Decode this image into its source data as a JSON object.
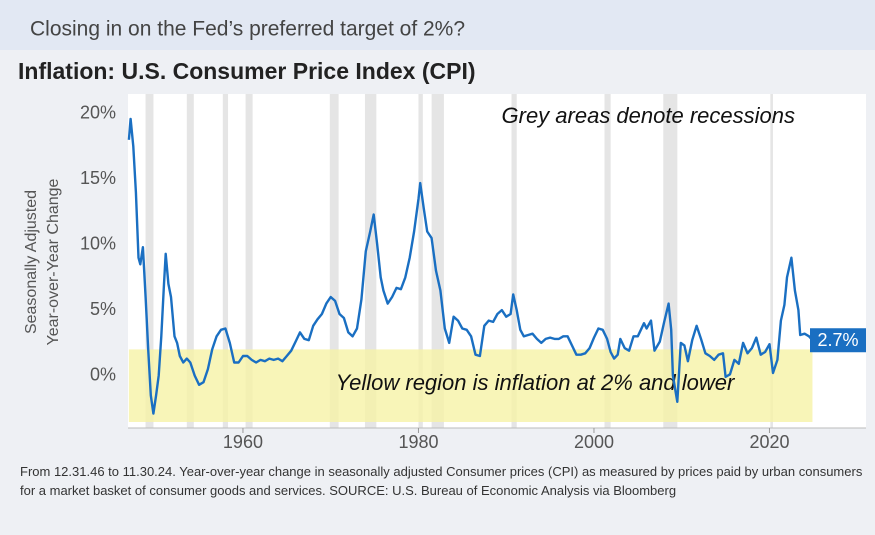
{
  "subtitle": "Closing in on the Fed’s preferred target of 2%?",
  "footnote": "From 12.31.46 to 11.30.24. Year-over-year change in seasonally adjusted Consumer prices (CPI) as measured by prices paid by urban consumers for a market basket of consumer goods and services. SOURCE: U.S. Bureau of Economic Analysis via Bloomberg",
  "chart_data": {
    "type": "line",
    "title": "Inflation: U.S. Consumer Price Index (CPI)",
    "y_label": [
      "Seasonally Adjusted",
      "Year-over-Year Change"
    ],
    "annotations": [
      "Grey areas denote recessions",
      "Yellow region is inflation at 2% and lower"
    ],
    "end_label": {
      "value": 2.7,
      "label": "2.7%"
    },
    "target": 2,
    "recessions": [
      [
        1948.9,
        1949.8
      ],
      [
        1953.6,
        1954.4
      ],
      [
        1957.7,
        1958.3
      ],
      [
        1960.3,
        1961.1
      ],
      [
        1969.9,
        1970.9
      ],
      [
        1973.9,
        1975.2
      ],
      [
        1980.0,
        1980.5
      ],
      [
        1981.5,
        1982.9
      ],
      [
        1990.6,
        1991.2
      ],
      [
        2001.2,
        2001.9
      ],
      [
        2007.9,
        2009.5
      ],
      [
        2020.1,
        2020.4
      ]
    ],
    "xlim": [
      1946.9,
      2031
    ],
    "xticks": [
      1960,
      1980,
      2000,
      2020
    ],
    "ylim": [
      -4,
      21.5
    ],
    "yticks": [
      {
        "value": 0,
        "label": "0%"
      },
      {
        "value": 5,
        "label": "5%"
      },
      {
        "value": 10,
        "label": "10%"
      },
      {
        "value": 15,
        "label": "15%"
      },
      {
        "value": 20,
        "label": "20%"
      }
    ],
    "grid": false,
    "color": "#1a6fc2",
    "x": [
      1947.0,
      1947.2,
      1947.5,
      1947.8,
      1948.1,
      1948.3,
      1948.6,
      1948.9,
      1949.2,
      1949.5,
      1949.8,
      1950.1,
      1950.4,
      1950.7,
      1951.0,
      1951.2,
      1951.5,
      1951.8,
      1952.2,
      1952.5,
      1952.8,
      1953.2,
      1953.6,
      1954.0,
      1954.5,
      1955.0,
      1955.5,
      1956.0,
      1956.5,
      1957.0,
      1957.5,
      1958.0,
      1958.5,
      1959.0,
      1959.5,
      1960.0,
      1960.5,
      1961.0,
      1961.5,
      1962.0,
      1962.5,
      1963.0,
      1963.5,
      1964.0,
      1964.5,
      1965.0,
      1965.5,
      1966.0,
      1966.5,
      1967.0,
      1967.5,
      1968.0,
      1968.5,
      1969.0,
      1969.5,
      1970.0,
      1970.5,
      1971.0,
      1971.5,
      1972.0,
      1972.5,
      1973.0,
      1973.5,
      1974.0,
      1974.5,
      1974.9,
      1975.3,
      1975.7,
      1976.0,
      1976.5,
      1977.0,
      1977.5,
      1978.0,
      1978.5,
      1979.0,
      1979.5,
      1980.0,
      1980.2,
      1980.6,
      1981.0,
      1981.5,
      1982.0,
      1982.5,
      1983.0,
      1983.5,
      1984.0,
      1984.5,
      1985.0,
      1985.5,
      1986.0,
      1986.5,
      1987.0,
      1987.5,
      1988.0,
      1988.5,
      1989.0,
      1989.5,
      1990.0,
      1990.5,
      1990.8,
      1991.2,
      1991.6,
      1992.0,
      1992.5,
      1993.0,
      1993.5,
      1994.0,
      1994.5,
      1995.0,
      1995.5,
      1996.0,
      1996.5,
      1997.0,
      1997.5,
      1998.0,
      1998.5,
      1999.0,
      1999.5,
      2000.0,
      2000.5,
      2001.0,
      2001.5,
      2001.9,
      2002.3,
      2002.7,
      2003.0,
      2003.5,
      2004.0,
      2004.5,
      2005.0,
      2005.7,
      2006.0,
      2006.5,
      2006.9,
      2007.5,
      2008.0,
      2008.5,
      2008.8,
      2009.0,
      2009.5,
      2009.9,
      2010.3,
      2010.7,
      2011.2,
      2011.7,
      2012.2,
      2012.7,
      2013.2,
      2013.7,
      2014.2,
      2014.7,
      2015.0,
      2015.5,
      2016.0,
      2016.5,
      2017.0,
      2017.5,
      2018.0,
      2018.5,
      2019.0,
      2019.5,
      2020.0,
      2020.4,
      2020.9,
      2021.3,
      2021.7,
      2022.0,
      2022.5,
      2022.9,
      2023.3,
      2023.5,
      2024.0,
      2024.5,
      2024.9
    ],
    "values": [
      18.0,
      19.6,
      17.5,
      14,
      9,
      8.5,
      9.8,
      6,
      2,
      -1.5,
      -2.9,
      -1.5,
      0,
      3,
      7,
      9.3,
      7,
      6,
      3,
      2.5,
      1.5,
      1,
      1.3,
      1,
      0,
      -0.7,
      -0.5,
      0.5,
      2,
      3,
      3.5,
      3.6,
      2.5,
      1,
      1,
      1.5,
      1.5,
      1.2,
      1,
      1.2,
      1.1,
      1.3,
      1.2,
      1.3,
      1.1,
      1.5,
      1.9,
      2.6,
      3.3,
      2.8,
      2.7,
      3.8,
      4.3,
      4.7,
      5.5,
      6.0,
      5.7,
      4.7,
      4.4,
      3.3,
      3.0,
      3.6,
      5.8,
      9.5,
      11,
      12.3,
      10,
      7.5,
      6.5,
      5.5,
      6,
      6.7,
      6.6,
      7.5,
      9,
      11,
      13.5,
      14.7,
      12.8,
      11,
      10.5,
      8,
      6.5,
      3.6,
      2.5,
      4.5,
      4.2,
      3.6,
      3.5,
      3,
      1.6,
      1.5,
      3.8,
      4.2,
      4.1,
      4.7,
      5.0,
      4.5,
      4.7,
      6.2,
      5,
      3.5,
      3,
      3.1,
      3.2,
      2.8,
      2.5,
      2.8,
      2.9,
      2.8,
      2.8,
      3,
      3,
      2.3,
      1.6,
      1.6,
      1.7,
      2.1,
      2.9,
      3.6,
      3.5,
      2.8,
      1.8,
      1.3,
      1.6,
      2.8,
      2.1,
      1.9,
      3,
      3,
      4.0,
      3.6,
      4.2,
      1.9,
      2.6,
      4.1,
      5.5,
      3.5,
      0,
      -2,
      2.5,
      2.3,
      1.1,
      2.7,
      3.8,
      2.8,
      1.7,
      1.5,
      1.2,
      1.6,
      1.7,
      -0.1,
      0.1,
      1.2,
      0.9,
      2.5,
      1.7,
      2.1,
      2.9,
      1.6,
      1.8,
      2.4,
      0.2,
      1.2,
      4.2,
      5.4,
      7.5,
      9.0,
      6.5,
      5,
      3.1,
      3.2,
      3.0,
      2.7
    ]
  }
}
